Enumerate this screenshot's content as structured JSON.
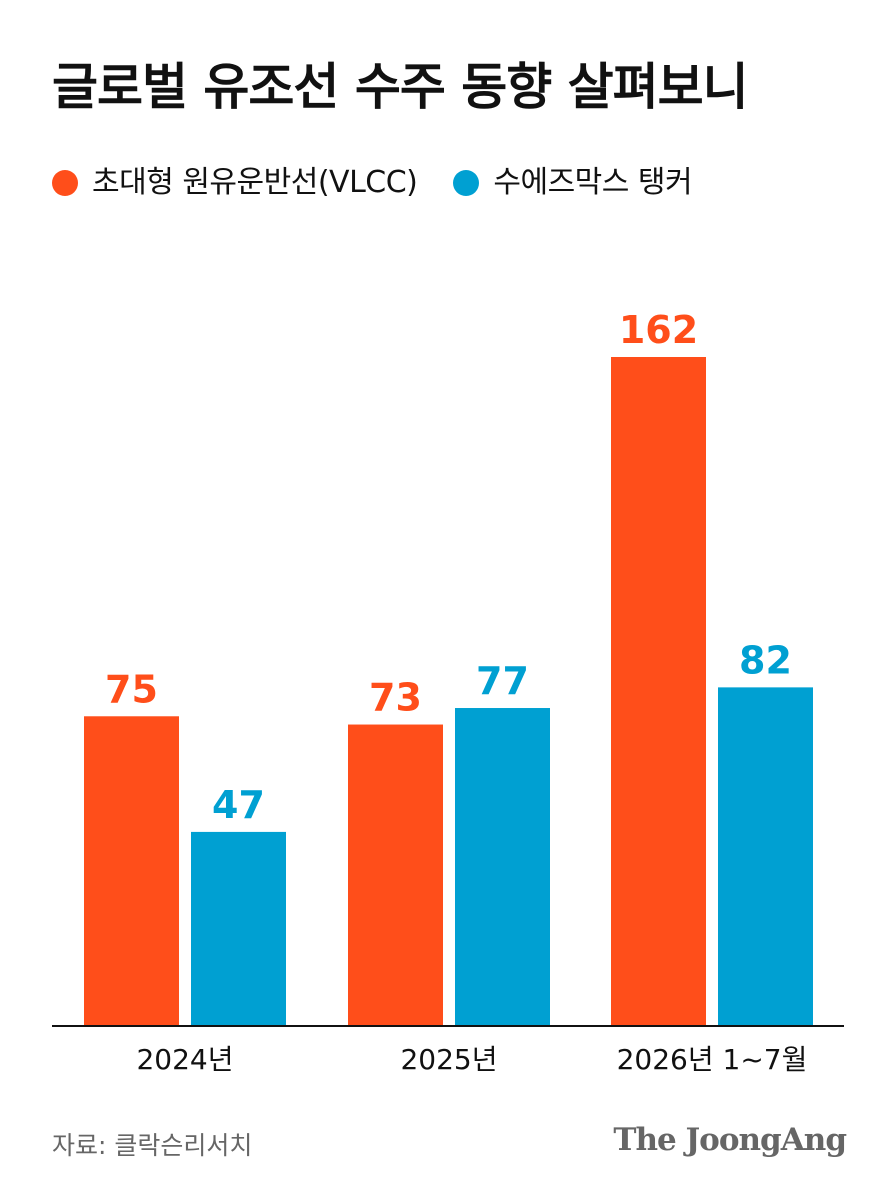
{
  "title": "글로벌 유조선 수주 동향 살펴보니",
  "legend": [
    {
      "label": "초대형 원유운반선(VLCC)",
      "color": "#ff4e1a"
    },
    {
      "label": "수에즈막스 탱커",
      "color": "#00a0d2"
    }
  ],
  "source": "자료: 클락슨리서치",
  "brand": "The JoongAng",
  "chart_data": {
    "type": "bar",
    "categories": [
      "2024년",
      "2025년",
      "2026년 1~7월"
    ],
    "series": [
      {
        "name": "초대형 원유운반선(VLCC)",
        "values": [
          75,
          73,
          162
        ],
        "color": "#ff4e1a"
      },
      {
        "name": "수에즈막스 탱커",
        "values": [
          47,
          77,
          82
        ],
        "color": "#00a0d2"
      }
    ],
    "xlabel": "",
    "ylabel": "",
    "ylim": [
      0,
      162
    ],
    "grid": false,
    "legend_position": "top-left"
  }
}
